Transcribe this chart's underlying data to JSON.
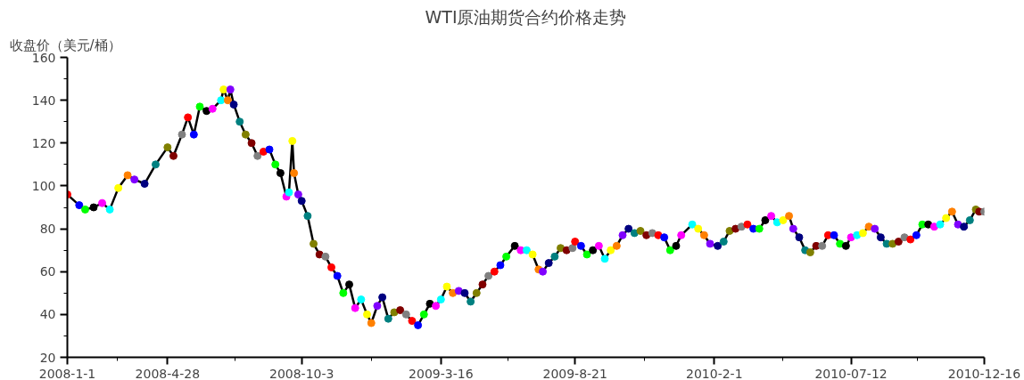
{
  "chart_data": {
    "type": "line",
    "title": "WTI原油期货合约价格走势",
    "ylabel": "收盘价（美元/桶）",
    "x": [
      "2008-01-01",
      "2008-01-15",
      "2008-01-22",
      "2008-02-01",
      "2008-02-11",
      "2008-02-20",
      "2008-03-01",
      "2008-03-12",
      "2008-03-20",
      "2008-04-01",
      "2008-04-14",
      "2008-04-28",
      "2008-05-05",
      "2008-05-15",
      "2008-05-22",
      "2008-05-29",
      "2008-06-05",
      "2008-06-13",
      "2008-06-20",
      "2008-06-30",
      "2008-07-03",
      "2008-07-08",
      "2008-07-11",
      "2008-07-15",
      "2008-07-22",
      "2008-07-29",
      "2008-08-05",
      "2008-08-12",
      "2008-08-19",
      "2008-08-26",
      "2008-09-02",
      "2008-09-08",
      "2008-09-15",
      "2008-09-18",
      "2008-09-22",
      "2008-09-24",
      "2008-09-29",
      "2008-10-03",
      "2008-10-10",
      "2008-10-17",
      "2008-10-24",
      "2008-10-31",
      "2008-11-07",
      "2008-11-14",
      "2008-11-21",
      "2008-11-28",
      "2008-12-05",
      "2008-12-12",
      "2008-12-19",
      "2008-12-24",
      "2008-12-31",
      "2009-01-06",
      "2009-01-13",
      "2009-01-20",
      "2009-01-27",
      "2009-02-03",
      "2009-02-10",
      "2009-02-17",
      "2009-02-24",
      "2009-03-03",
      "2009-03-10",
      "2009-03-16",
      "2009-03-23",
      "2009-03-30",
      "2009-04-06",
      "2009-04-13",
      "2009-04-20",
      "2009-04-27",
      "2009-05-04",
      "2009-05-11",
      "2009-05-18",
      "2009-05-25",
      "2009-06-01",
      "2009-06-11",
      "2009-06-18",
      "2009-06-25",
      "2009-07-02",
      "2009-07-09",
      "2009-07-14",
      "2009-07-21",
      "2009-07-28",
      "2009-08-04",
      "2009-08-11",
      "2009-08-18",
      "2009-08-21",
      "2009-08-28",
      "2009-09-04",
      "2009-09-11",
      "2009-09-18",
      "2009-09-25",
      "2009-10-02",
      "2009-10-09",
      "2009-10-16",
      "2009-10-23",
      "2009-10-30",
      "2009-11-06",
      "2009-11-13",
      "2009-11-20",
      "2009-11-27",
      "2009-12-04",
      "2009-12-11",
      "2009-12-18",
      "2009-12-24",
      "2010-01-06",
      "2010-01-13",
      "2010-01-20",
      "2010-01-27",
      "2010-02-05",
      "2010-02-12",
      "2010-02-19",
      "2010-02-26",
      "2010-03-05",
      "2010-03-12",
      "2010-03-19",
      "2010-03-26",
      "2010-04-02",
      "2010-04-09",
      "2010-04-16",
      "2010-04-23",
      "2010-04-30",
      "2010-05-05",
      "2010-05-12",
      "2010-05-19",
      "2010-05-25",
      "2010-06-01",
      "2010-06-08",
      "2010-06-15",
      "2010-06-22",
      "2010-06-29",
      "2010-07-06",
      "2010-07-12",
      "2010-07-19",
      "2010-07-26",
      "2010-08-02",
      "2010-08-09",
      "2010-08-16",
      "2010-08-23",
      "2010-08-30",
      "2010-09-06",
      "2010-09-13",
      "2010-09-20",
      "2010-09-27",
      "2010-10-04",
      "2010-10-11",
      "2010-10-18",
      "2010-10-25",
      "2010-11-01",
      "2010-11-08",
      "2010-11-15",
      "2010-11-22",
      "2010-11-29",
      "2010-12-06",
      "2010-12-10",
      "2010-12-16"
    ],
    "series": [
      {
        "color": "#000000",
        "values": [
          96,
          91,
          89,
          90,
          92,
          89,
          99,
          105,
          103,
          101,
          110,
          118,
          114,
          124,
          132,
          124,
          137,
          135,
          136,
          140,
          145,
          140,
          145,
          138,
          130,
          124,
          120,
          114,
          116,
          117,
          110,
          106,
          95,
          97,
          121,
          106,
          96,
          93,
          86,
          73,
          68,
          67,
          62,
          58,
          50,
          54,
          43,
          47,
          40,
          36,
          44,
          48,
          38,
          41,
          42,
          40,
          37,
          35,
          40,
          45,
          44,
          47,
          53,
          50,
          51,
          50,
          46,
          50,
          54,
          58,
          60,
          63,
          67,
          72,
          70,
          70,
          68,
          61,
          60,
          64,
          67,
          71,
          70,
          71,
          74,
          72,
          68,
          70,
          72,
          66,
          70,
          72,
          77,
          80,
          78,
          79,
          77,
          78,
          77,
          76,
          70,
          72,
          77,
          82,
          80,
          77,
          73,
          72,
          74,
          79,
          80,
          81,
          82,
          80,
          80,
          84,
          86,
          83,
          84,
          86,
          80,
          76,
          70,
          69,
          72,
          72,
          77,
          77,
          73,
          72,
          76,
          77,
          78,
          81,
          80,
          76,
          73,
          73,
          74,
          76,
          75,
          77,
          82,
          82,
          81,
          82,
          85,
          88,
          82,
          81,
          84,
          89,
          88,
          88
        ],
        "colors": [
          "#ff0000",
          "#0000ff",
          "#00ff00",
          "#000000",
          "#ff00ff",
          "#00ffff",
          "#ffff00",
          "#ff8000",
          "#8000ff",
          "#000080",
          "#008080",
          "#808000",
          "#800000",
          "#808080",
          "#ff0000",
          "#0000ff",
          "#00ff00",
          "#000000",
          "#ff00ff",
          "#00ffff",
          "#ffff00",
          "#ff8000",
          "#8000ff",
          "#000080",
          "#008080",
          "#808000",
          "#800000",
          "#808080",
          "#ff0000",
          "#0000ff",
          "#00ff00",
          "#000000",
          "#ff00ff",
          "#00ffff",
          "#ffff00",
          "#ff8000",
          "#8000ff",
          "#000080",
          "#008080",
          "#808000",
          "#800000",
          "#808080",
          "#ff0000",
          "#0000ff",
          "#00ff00",
          "#000000",
          "#ff00ff",
          "#00ffff",
          "#ffff00",
          "#ff8000",
          "#8000ff",
          "#000080",
          "#008080",
          "#808000",
          "#800000",
          "#808080",
          "#ff0000",
          "#0000ff",
          "#00ff00",
          "#000000",
          "#ff00ff",
          "#00ffff",
          "#ffff00",
          "#ff8000",
          "#8000ff",
          "#000080",
          "#008080",
          "#808000",
          "#800000",
          "#808080",
          "#ff0000",
          "#0000ff",
          "#00ff00",
          "#000000",
          "#ff00ff",
          "#00ffff",
          "#ffff00",
          "#ff8000",
          "#8000ff",
          "#000080",
          "#008080",
          "#808000",
          "#800000",
          "#808080",
          "#ff0000",
          "#0000ff",
          "#00ff00",
          "#000000",
          "#ff00ff",
          "#00ffff",
          "#ffff00",
          "#ff8000",
          "#8000ff",
          "#000080",
          "#008080",
          "#808000",
          "#800000",
          "#808080",
          "#ff0000",
          "#0000ff",
          "#00ff00",
          "#000000",
          "#ff00ff",
          "#00ffff",
          "#ffff00",
          "#ff8000",
          "#8000ff",
          "#000080",
          "#008080",
          "#808000",
          "#800000",
          "#808080",
          "#ff0000",
          "#0000ff",
          "#00ff00",
          "#000000",
          "#ff00ff",
          "#00ffff",
          "#ffff00",
          "#ff8000",
          "#8000ff",
          "#000080",
          "#008080",
          "#808000",
          "#800000",
          "#808080",
          "#ff0000",
          "#0000ff",
          "#00ff00",
          "#000000",
          "#ff00ff",
          "#00ffff",
          "#ffff00",
          "#ff8000",
          "#8000ff",
          "#000080",
          "#008080",
          "#808000",
          "#800000",
          "#808080",
          "#ff0000",
          "#0000ff",
          "#00ff00",
          "#000000",
          "#ff00ff",
          "#00ffff",
          "#ffff00",
          "#ff8000",
          "#8000ff",
          "#000080",
          "#008080",
          "#808000",
          "#800000",
          "#808080"
        ]
      }
    ],
    "xlim": [
      "2008-01-01",
      "2010-12-16"
    ],
    "xticks": [
      {
        "value": "2008-01-01",
        "label": "2008-1-1"
      },
      {
        "value": "2008-04-28",
        "label": "2008-4-28"
      },
      {
        "value": "2008-10-03",
        "label": "2008-10-3"
      },
      {
        "value": "2009-03-16",
        "label": "2009-3-16"
      },
      {
        "value": "2009-08-21",
        "label": "2009-8-21"
      },
      {
        "value": "2010-02-01",
        "label": "2010-2-1"
      },
      {
        "value": "2010-07-12",
        "label": "2010-07-12"
      },
      {
        "value": "2010-12-16",
        "label": "2010-12-16"
      }
    ],
    "ylim": [
      20,
      160
    ],
    "yticks": [
      20,
      40,
      60,
      80,
      100,
      120,
      140,
      160
    ],
    "marker": "circle",
    "line_style": "solid",
    "grid": false
  }
}
